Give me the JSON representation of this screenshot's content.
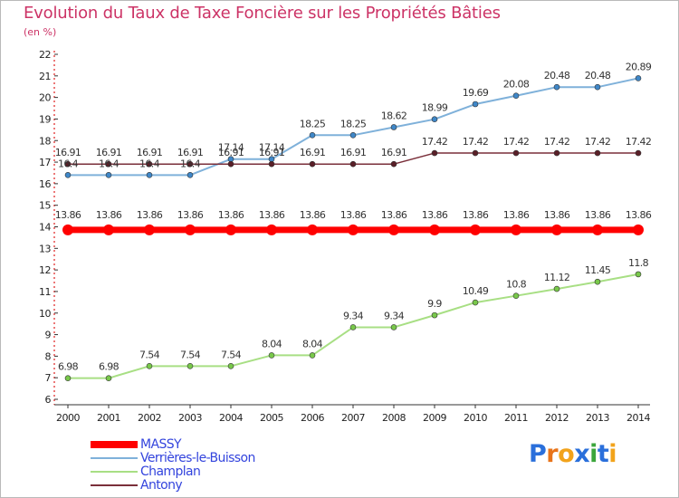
{
  "title": "Evolution du Taux de Taxe Foncière sur les Propriétés Bâties",
  "unit_label": "(en %)",
  "brand": {
    "letters": [
      "P",
      "r",
      "o",
      "x",
      "i",
      "t",
      "i"
    ],
    "colors": [
      "#2a6fdb",
      "#e8741a",
      "#f2a31b",
      "#2a6fdb",
      "#3ca63c",
      "#2a6fdb",
      "#f2a31b"
    ]
  },
  "chart_data": {
    "type": "line",
    "title": "Evolution du Taux de Taxe Foncière sur les Propriétés Bâties",
    "ylabel": "(en %)",
    "xlabel": "",
    "ylim": [
      6,
      22
    ],
    "grid": false,
    "legend_position": "bottom-left",
    "x": [
      "2000",
      "2001",
      "2002",
      "2003",
      "2004",
      "2005",
      "2006",
      "2007",
      "2008",
      "2009",
      "2010",
      "2011",
      "2012",
      "2013",
      "2014"
    ],
    "yticks": [
      6,
      7,
      8,
      9,
      10,
      11,
      12,
      13,
      14,
      15,
      16,
      17,
      18,
      19,
      20,
      21,
      22
    ],
    "series": [
      {
        "name": "MASSY",
        "color": "#ff0000",
        "point_color": "#ff0000",
        "width": 7,
        "radius": 6,
        "values": [
          13.86,
          13.86,
          13.86,
          13.86,
          13.86,
          13.86,
          13.86,
          13.86,
          13.86,
          13.86,
          13.86,
          13.86,
          13.86,
          13.86,
          13.86
        ],
        "labels": [
          "13.86",
          "13.86",
          "13.86",
          "13.86",
          "13.86",
          "13.86",
          "13.86",
          "13.86",
          "13.86",
          "13.86",
          "13.86",
          "13.86",
          "13.86",
          "13.86",
          "13.86"
        ]
      },
      {
        "name": "Verrières-le-Buisson",
        "color": "#7fb1da",
        "point_color": "#3f87c8",
        "width": 2,
        "radius": 3,
        "values": [
          16.4,
          16.4,
          16.4,
          16.4,
          17.14,
          17.14,
          18.25,
          18.25,
          18.62,
          18.99,
          19.69,
          20.08,
          20.48,
          20.48,
          20.89
        ],
        "labels": [
          "16.4",
          "16.4",
          "16.4",
          "16.4",
          "17.14",
          "17.14",
          "18.25",
          "18.25",
          "18.62",
          "18.99",
          "19.69",
          "20.08",
          "20.48",
          "20.48",
          "20.89"
        ]
      },
      {
        "name": "Champlan",
        "color": "#a8df84",
        "point_color": "#78c84a",
        "width": 2,
        "radius": 3,
        "values": [
          6.98,
          6.98,
          7.54,
          7.54,
          7.54,
          8.04,
          8.04,
          9.34,
          9.34,
          9.9,
          10.49,
          10.8,
          11.12,
          11.45,
          11.8
        ],
        "labels": [
          "6.98",
          "6.98",
          "7.54",
          "7.54",
          "7.54",
          "8.04",
          "8.04",
          "9.34",
          "9.34",
          "9.9",
          "10.49",
          "10.8",
          "11.12",
          "11.45",
          "11.8"
        ]
      },
      {
        "name": "Antony",
        "color": "#7a2f3a",
        "point_color": "#5a1f28",
        "width": 1.5,
        "radius": 3,
        "values": [
          16.91,
          16.91,
          16.91,
          16.91,
          16.91,
          16.91,
          16.91,
          16.91,
          16.91,
          17.42,
          17.42,
          17.42,
          17.42,
          17.42,
          17.42
        ],
        "labels": [
          "16.91",
          "16.91",
          "16.91",
          "16.91",
          "16.91",
          "16.91",
          "16.91",
          "16.91",
          "16.91",
          "17.42",
          "17.42",
          "17.42",
          "17.42",
          "17.42",
          "17.42"
        ]
      }
    ]
  }
}
